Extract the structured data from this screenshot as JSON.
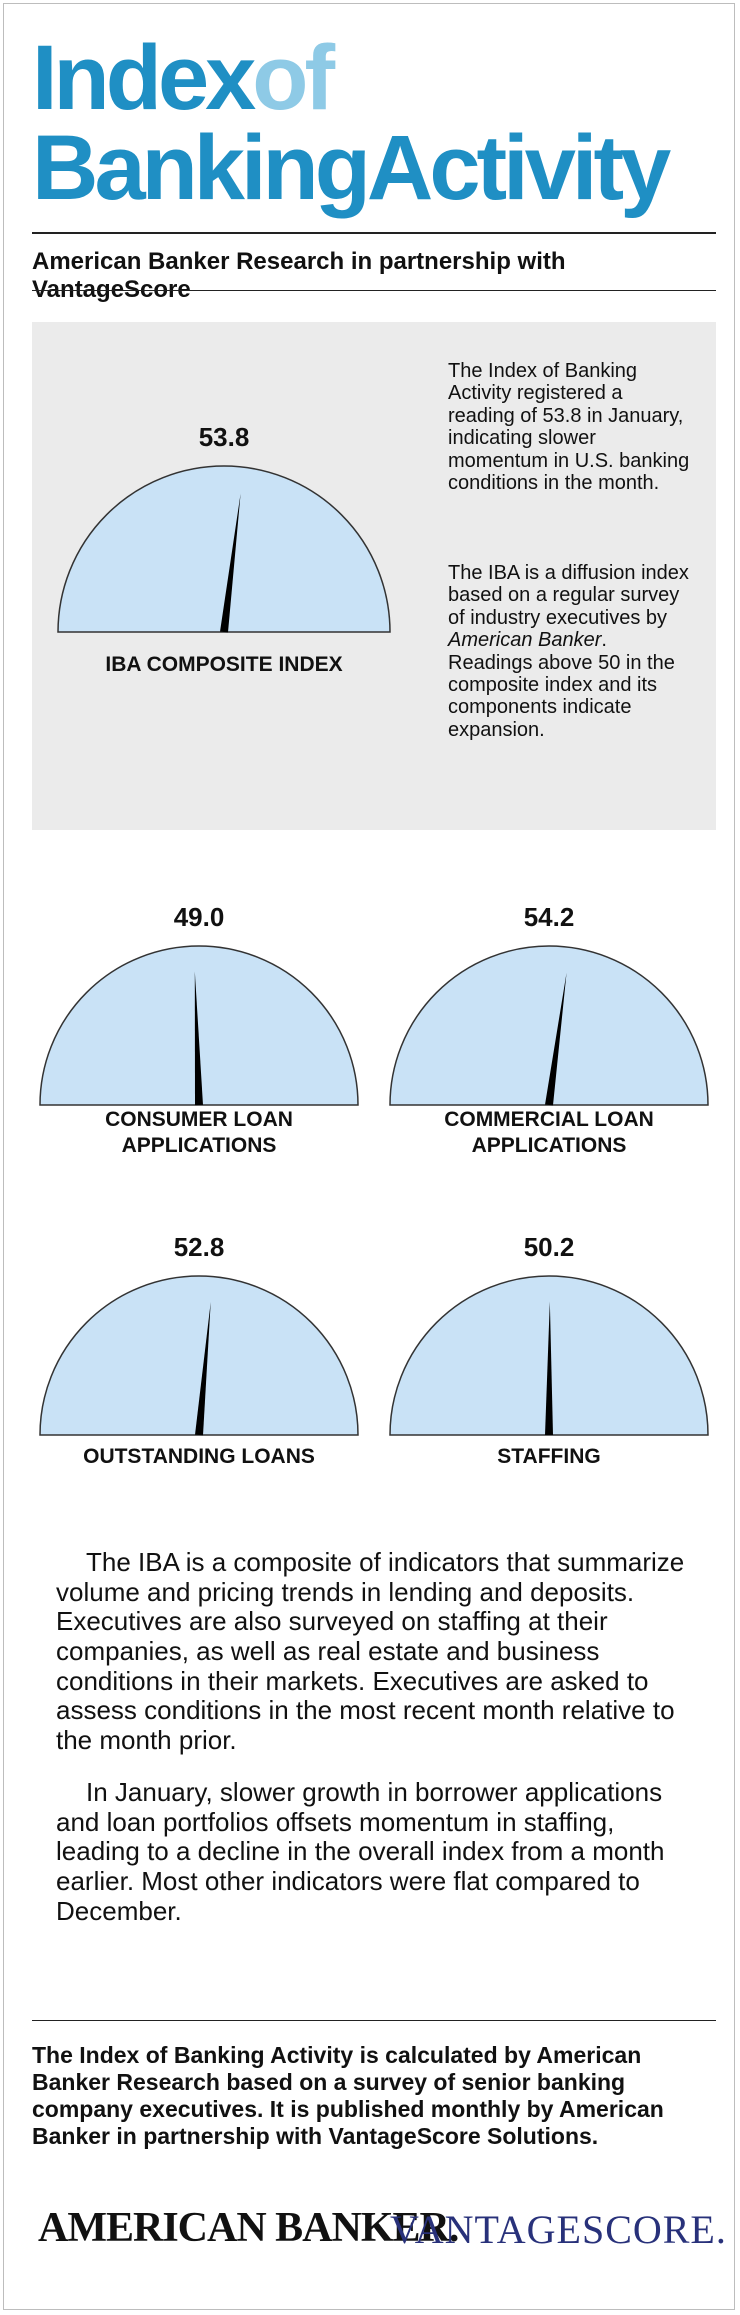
{
  "header": {
    "title_part1": "Index",
    "title_part2": "of",
    "title_line2": "BankingActivity",
    "subtitle": "American Banker Research in partnership with VantageScore"
  },
  "composite": {
    "value": "53.8",
    "label": "IBA COMPOSITE INDEX",
    "description1": "The Index of Banking Activity registered a reading of 53.8 in January, indicating slower momentum in U.S. banking conditions in the month.",
    "description2_pre": "The IBA is a diffusion index based on a regular survey of industry executives by ",
    "description2_em": "American Banker",
    "description2_post": ". Readings above 50 in the composite index and its components indicate expansion."
  },
  "gauges": [
    {
      "value": "49.0",
      "label": "CONSUMER LOAN APPLICATIONS"
    },
    {
      "value": "54.2",
      "label": "COMMERCIAL LOAN APPLICATIONS"
    },
    {
      "value": "52.8",
      "label": "OUTSTANDING LOANS"
    },
    {
      "value": "50.2",
      "label": "STAFFING"
    }
  ],
  "body": {
    "paragraph1": "The IBA is a composite of indicators that summarize volume and pricing trends in lending and deposits. Executives are also surveyed on staffing at their companies, as well as real estate and business conditions in their markets. Executives are asked to assess conditions in the most recent month relative to the month prior.",
    "paragraph2": "In January, slower growth in borrower applications and loan portfolios offsets momentum in staffing, leading to a decline in the overall index from a month earlier. Most other indicators were flat compared to December."
  },
  "footer": {
    "note": "The Index of Banking Activity is calculated by American Banker Research based on a survey of senior banking company executives. It is published monthly by American Banker in partnership with VantageScore Solutions.",
    "logo_left": "AMERICAN BANKER.",
    "logo_right": "VANTAGESCORE."
  },
  "colors": {
    "title_blue": "#1f8fc4",
    "title_light_blue": "#8ecae6",
    "gauge_fill": "#c9e2f6",
    "needle": "#000000",
    "panel_bg": "#ebebeb",
    "vantage_blue": "#28317a"
  }
}
